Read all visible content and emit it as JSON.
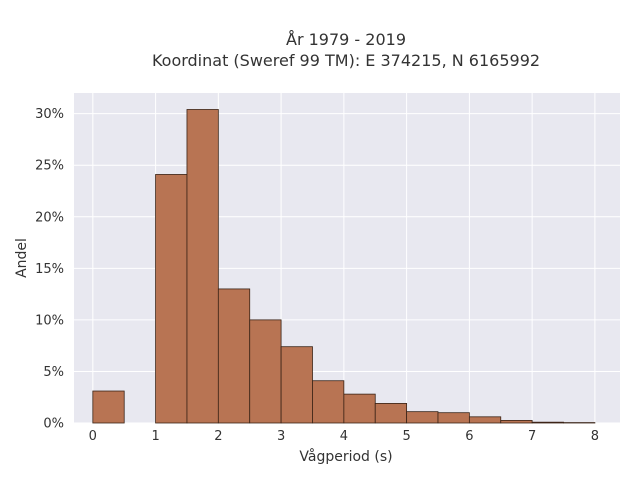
{
  "chart_data": {
    "type": "bar",
    "title": "År 1979 - 2019",
    "subtitle": "Koordinat (Sweref 99 TM): E 374215, N 6165992",
    "xlabel": "Vågperiod (s)",
    "ylabel": "Andel",
    "xlim": [
      -0.3,
      8.4
    ],
    "ylim": [
      0,
      0.32
    ],
    "x_ticks": [
      0,
      1,
      2,
      3,
      4,
      5,
      6,
      7,
      8
    ],
    "y_ticks": [
      0,
      0.05,
      0.1,
      0.15,
      0.2,
      0.25,
      0.3
    ],
    "y_tick_labels": [
      "0%",
      "5%",
      "10%",
      "15%",
      "20%",
      "25%",
      "30%"
    ],
    "grid": true,
    "bar_color": "#b87453",
    "bar_edge_color": "#3a2316",
    "plot_background": "#e8e8f0",
    "bins": [
      {
        "start": 0.0,
        "end": 0.5,
        "value": 0.031
      },
      {
        "start": 0.5,
        "end": 1.0,
        "value": 0.0
      },
      {
        "start": 1.0,
        "end": 1.5,
        "value": 0.241
      },
      {
        "start": 1.5,
        "end": 2.0,
        "value": 0.304
      },
      {
        "start": 2.0,
        "end": 2.5,
        "value": 0.13
      },
      {
        "start": 2.5,
        "end": 3.0,
        "value": 0.1
      },
      {
        "start": 3.0,
        "end": 3.5,
        "value": 0.074
      },
      {
        "start": 3.5,
        "end": 4.0,
        "value": 0.041
      },
      {
        "start": 4.0,
        "end": 4.5,
        "value": 0.028
      },
      {
        "start": 4.5,
        "end": 5.0,
        "value": 0.019
      },
      {
        "start": 5.0,
        "end": 5.5,
        "value": 0.011
      },
      {
        "start": 5.5,
        "end": 6.0,
        "value": 0.01
      },
      {
        "start": 6.0,
        "end": 6.5,
        "value": 0.006
      },
      {
        "start": 6.5,
        "end": 7.0,
        "value": 0.0025
      },
      {
        "start": 7.0,
        "end": 7.5,
        "value": 0.0008
      },
      {
        "start": 7.5,
        "end": 8.0,
        "value": 0.0004
      }
    ]
  }
}
